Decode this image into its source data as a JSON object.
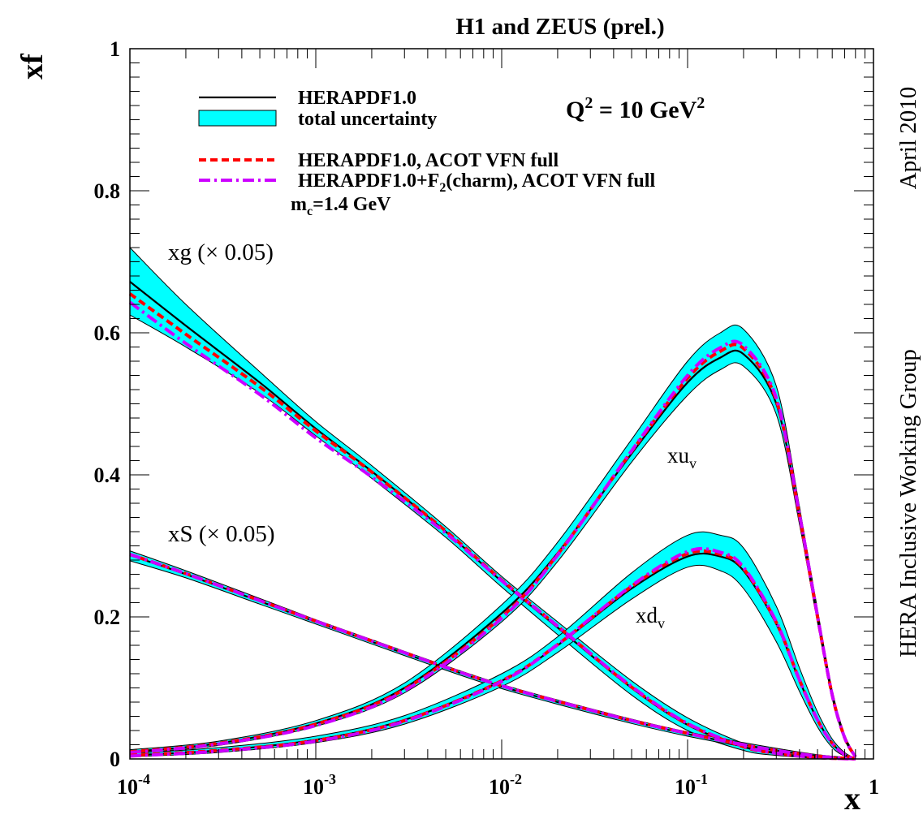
{
  "chart_data": {
    "type": "line",
    "title": "H1 and ZEUS (prel.)",
    "xlabel": "x",
    "ylabel": "xf",
    "x_scale": "log",
    "xlim": [
      0.0001,
      1
    ],
    "ylim": [
      0,
      1
    ],
    "x_ticks": [
      {
        "base": "10",
        "exp": "-4"
      },
      {
        "base": "10",
        "exp": "-3"
      },
      {
        "base": "10",
        "exp": "-2"
      },
      {
        "base": "10",
        "exp": "-1"
      },
      {
        "base": "1",
        "exp": ""
      }
    ],
    "y_ticks": [
      "0",
      "0.2",
      "0.4",
      "0.6",
      "0.8",
      "1"
    ],
    "annotation_q2": {
      "base": "Q",
      "sup1": "2",
      "mid": " = 10 GeV",
      "sup2": "2"
    },
    "side_label_top": "April 2010",
    "side_label_bottom": "HERA Inclusive Working Group",
    "legend": {
      "placement": "top-left",
      "entries": [
        {
          "text": "HERAPDF1.0",
          "style": "solid",
          "color": "#000000"
        },
        {
          "text": "total uncertainty",
          "style": "band",
          "color": "#00ffff"
        },
        {
          "text": "HERAPDF1.0, ACOT VFN full",
          "style": "dashed",
          "color": "#ff0000"
        },
        {
          "text_parts": [
            "HERAPDF1.0+F",
            "2",
            "(charm), ACOT VFN full"
          ],
          "style": "dashdot",
          "color": "#cc00ff"
        },
        {
          "text_parts": [
            "m",
            "c",
            "=1.4 GeV"
          ],
          "style": "none",
          "color": ""
        }
      ]
    },
    "curve_labels": [
      {
        "id": "xg",
        "text": "xg (× 0.05)"
      },
      {
        "id": "xS",
        "text": "xS (× 0.05)"
      },
      {
        "id": "xuv",
        "text": "xu",
        "sub": "v"
      },
      {
        "id": "xdv",
        "text": "xd",
        "sub": "v"
      }
    ],
    "colors": {
      "central": "#000000",
      "band": "#00ffff",
      "acot": "#ff0000",
      "charm": "#cc00ff"
    },
    "series": [
      {
        "id": "xg",
        "x": [
          0.0001,
          0.0002,
          0.0005,
          0.001,
          0.002,
          0.005,
          0.01,
          0.02,
          0.05,
          0.1,
          0.2,
          0.3,
          0.5,
          0.8
        ],
        "y": [
          0.672,
          0.61,
          0.53,
          0.465,
          0.405,
          0.32,
          0.25,
          0.185,
          0.1,
          0.048,
          0.017,
          0.008,
          0.002,
          0.0
        ],
        "y_lo": [
          0.625,
          0.58,
          0.515,
          0.455,
          0.395,
          0.312,
          0.242,
          0.175,
          0.09,
          0.04,
          0.012,
          0.005,
          0.001,
          0.0
        ],
        "y_hi": [
          0.72,
          0.64,
          0.545,
          0.475,
          0.413,
          0.327,
          0.257,
          0.193,
          0.11,
          0.058,
          0.022,
          0.011,
          0.004,
          0.001
        ],
        "y_acot": [
          0.655,
          0.598,
          0.524,
          0.462,
          0.404,
          0.321,
          0.252,
          0.187,
          0.101,
          0.049,
          0.017,
          0.008,
          0.002,
          0.0
        ],
        "y_charm": [
          0.643,
          0.585,
          0.513,
          0.452,
          0.397,
          0.318,
          0.251,
          0.187,
          0.102,
          0.05,
          0.018,
          0.008,
          0.002,
          0.0
        ]
      },
      {
        "id": "xS",
        "x": [
          0.0001,
          0.0002,
          0.0005,
          0.001,
          0.002,
          0.005,
          0.01,
          0.02,
          0.05,
          0.1,
          0.2,
          0.3,
          0.5,
          0.8
        ],
        "y": [
          0.287,
          0.26,
          0.222,
          0.193,
          0.165,
          0.128,
          0.102,
          0.08,
          0.053,
          0.035,
          0.02,
          0.012,
          0.004,
          0.0
        ],
        "y_lo": [
          0.279,
          0.255,
          0.218,
          0.19,
          0.162,
          0.125,
          0.099,
          0.077,
          0.05,
          0.032,
          0.017,
          0.009,
          0.002,
          0.0
        ],
        "y_hi": [
          0.293,
          0.265,
          0.226,
          0.196,
          0.168,
          0.131,
          0.105,
          0.083,
          0.056,
          0.038,
          0.023,
          0.015,
          0.006,
          0.001
        ],
        "y_acot": [
          0.288,
          0.261,
          0.223,
          0.194,
          0.166,
          0.129,
          0.103,
          0.081,
          0.054,
          0.036,
          0.02,
          0.012,
          0.004,
          0.0
        ],
        "y_charm": [
          0.288,
          0.261,
          0.223,
          0.194,
          0.166,
          0.129,
          0.103,
          0.081,
          0.054,
          0.036,
          0.02,
          0.012,
          0.004,
          0.0
        ]
      },
      {
        "id": "xuv",
        "x": [
          0.0001,
          0.0003,
          0.001,
          0.003,
          0.01,
          0.02,
          0.05,
          0.1,
          0.15,
          0.2,
          0.3,
          0.4,
          0.5,
          0.6,
          0.7,
          0.8
        ],
        "y": [
          0.01,
          0.022,
          0.05,
          0.1,
          0.205,
          0.29,
          0.43,
          0.53,
          0.565,
          0.57,
          0.5,
          0.34,
          0.2,
          0.09,
          0.03,
          0.003
        ],
        "y_lo": [
          0.008,
          0.019,
          0.046,
          0.093,
          0.193,
          0.278,
          0.418,
          0.512,
          0.548,
          0.553,
          0.485,
          0.33,
          0.192,
          0.085,
          0.027,
          0.002
        ],
        "y_hi": [
          0.013,
          0.025,
          0.054,
          0.107,
          0.217,
          0.305,
          0.45,
          0.56,
          0.6,
          0.605,
          0.525,
          0.355,
          0.21,
          0.096,
          0.034,
          0.005
        ],
        "y_acot": [
          0.01,
          0.022,
          0.049,
          0.098,
          0.2,
          0.288,
          0.433,
          0.536,
          0.574,
          0.578,
          0.505,
          0.342,
          0.2,
          0.09,
          0.03,
          0.003
        ],
        "y_charm": [
          0.009,
          0.021,
          0.047,
          0.096,
          0.198,
          0.287,
          0.434,
          0.54,
          0.579,
          0.582,
          0.508,
          0.344,
          0.201,
          0.09,
          0.03,
          0.003
        ]
      },
      {
        "id": "xdv",
        "x": [
          0.0001,
          0.0003,
          0.001,
          0.003,
          0.01,
          0.02,
          0.05,
          0.1,
          0.15,
          0.2,
          0.3,
          0.4,
          0.5,
          0.6,
          0.7,
          0.8
        ],
        "y": [
          0.005,
          0.012,
          0.027,
          0.055,
          0.11,
          0.16,
          0.24,
          0.285,
          0.285,
          0.265,
          0.19,
          0.11,
          0.055,
          0.022,
          0.006,
          0.0
        ],
        "y_lo": [
          0.003,
          0.009,
          0.023,
          0.049,
          0.102,
          0.15,
          0.225,
          0.27,
          0.265,
          0.24,
          0.165,
          0.095,
          0.045,
          0.016,
          0.004,
          0.0
        ],
        "y_hi": [
          0.008,
          0.016,
          0.032,
          0.061,
          0.12,
          0.172,
          0.262,
          0.315,
          0.315,
          0.297,
          0.215,
          0.128,
          0.066,
          0.028,
          0.009,
          0.001
        ],
        "y_acot": [
          0.005,
          0.012,
          0.026,
          0.054,
          0.11,
          0.161,
          0.243,
          0.289,
          0.288,
          0.268,
          0.192,
          0.111,
          0.055,
          0.022,
          0.006,
          0.0
        ],
        "y_charm": [
          0.004,
          0.011,
          0.025,
          0.053,
          0.109,
          0.161,
          0.244,
          0.292,
          0.291,
          0.27,
          0.193,
          0.111,
          0.055,
          0.022,
          0.006,
          0.0
        ]
      }
    ]
  }
}
